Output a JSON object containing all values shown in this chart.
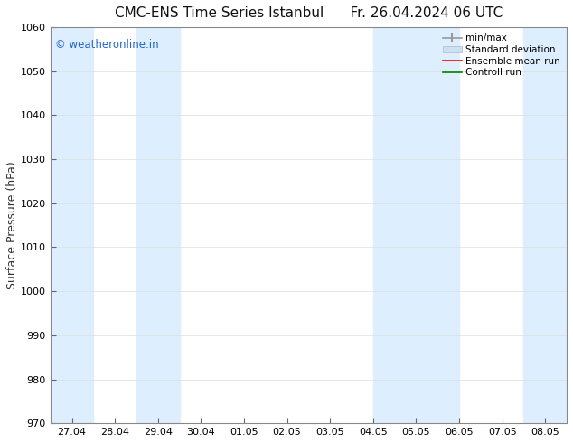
{
  "title_left": "CMC-ENS Time Series Istanbul",
  "title_right": "Fr. 26.04.2024 06 UTC",
  "ylabel": "Surface Pressure (hPa)",
  "ylim": [
    970,
    1060
  ],
  "yticks": [
    970,
    980,
    990,
    1000,
    1010,
    1020,
    1030,
    1040,
    1050,
    1060
  ],
  "xtick_labels": [
    "27.04",
    "28.04",
    "29.04",
    "30.04",
    "01.05",
    "02.05",
    "03.05",
    "04.05",
    "05.05",
    "06.05",
    "07.05",
    "08.05"
  ],
  "band_color": "#ddeeff",
  "watermark_text": "© weatheronline.in",
  "watermark_color": "#2266cc",
  "legend_entries": [
    {
      "label": "min/max",
      "color": "#999999",
      "lw": 1.2,
      "linestyle": "-"
    },
    {
      "label": "Standard deviation",
      "color": "#cce0f0",
      "lw": 8,
      "linestyle": "-"
    },
    {
      "label": "Ensemble mean run",
      "color": "red",
      "lw": 1.2,
      "linestyle": "-"
    },
    {
      "label": "Controll run",
      "color": "green",
      "lw": 1.2,
      "linestyle": "-"
    }
  ],
  "bg_color": "#ffffff",
  "spine_color": "#888888",
  "title_fontsize": 11,
  "tick_fontsize": 8,
  "ylabel_fontsize": 9
}
